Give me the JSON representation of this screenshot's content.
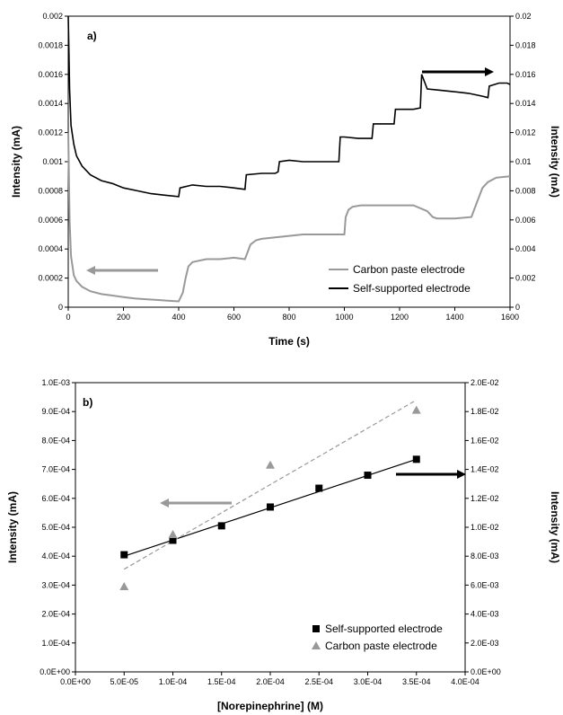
{
  "chart_data": [
    {
      "panel_label": "a)",
      "type": "line",
      "xlabel": "Time (s)",
      "ylabel_left": "Intensity (mA)",
      "ylabel_right": "Intensity (mA)",
      "xlim": [
        0,
        1600
      ],
      "ylim_left": [
        0,
        0.002
      ],
      "ylim_right": [
        0,
        0.02
      ],
      "x_ticks": [
        "0",
        "200",
        "400",
        "600",
        "800",
        "1000",
        "1200",
        "1400",
        "1600"
      ],
      "y_left_ticks": [
        "0",
        "0.0002",
        "0.0004",
        "0.0006",
        "0.0008",
        "0.001",
        "0.0012",
        "0.0014",
        "0.0016",
        "0.0018",
        "0.002"
      ],
      "y_right_ticks": [
        "0",
        "0.002",
        "0.004",
        "0.006",
        "0.008",
        "0.01",
        "0.012",
        "0.014",
        "0.016",
        "0.018",
        "0.02"
      ],
      "grid": false,
      "legend_position": "bottom-right",
      "series": [
        {
          "name": "Carbon paste electrode",
          "axis": "left",
          "color": "#999999",
          "x": [
            0,
            5,
            10,
            20,
            30,
            50,
            80,
            120,
            160,
            200,
            240,
            280,
            320,
            360,
            400,
            415,
            425,
            435,
            450,
            500,
            550,
            600,
            640,
            650,
            660,
            680,
            700,
            750,
            800,
            850,
            900,
            950,
            1000,
            1005,
            1015,
            1030,
            1060,
            1100,
            1150,
            1200,
            1250,
            1300,
            1320,
            1335,
            1345,
            1400,
            1460,
            1480,
            1500,
            1520,
            1550,
            1600
          ],
          "y": [
            0.0012,
            0.0006,
            0.00035,
            0.00022,
            0.00018,
            0.00014,
            0.00011,
            9e-05,
            8e-05,
            7e-05,
            6e-05,
            5.5e-05,
            5e-05,
            4.5e-05,
            4e-05,
            0.0001,
            0.0002,
            0.00028,
            0.00031,
            0.00033,
            0.00033,
            0.00034,
            0.00033,
            0.00038,
            0.00043,
            0.00046,
            0.00047,
            0.00048,
            0.00049,
            0.0005,
            0.0005,
            0.0005,
            0.0005,
            0.00062,
            0.00067,
            0.00069,
            0.0007,
            0.0007,
            0.0007,
            0.0007,
            0.0007,
            0.00066,
            0.00062,
            0.00061,
            0.00061,
            0.00061,
            0.00062,
            0.00072,
            0.00082,
            0.00086,
            0.00089,
            0.0009
          ]
        },
        {
          "name": "Self-supported electrode",
          "axis": "right",
          "color": "#000000",
          "x": [
            0,
            5,
            10,
            20,
            30,
            50,
            80,
            120,
            160,
            200,
            250,
            300,
            350,
            400,
            405,
            450,
            500,
            550,
            600,
            640,
            645,
            700,
            750,
            760,
            765,
            800,
            850,
            900,
            950,
            980,
            985,
            1000,
            1050,
            1100,
            1105,
            1150,
            1180,
            1185,
            1250,
            1275,
            1280,
            1300,
            1350,
            1400,
            1450,
            1500,
            1520,
            1525,
            1560,
            1590,
            1600
          ],
          "y": [
            0.02,
            0.015,
            0.0125,
            0.0112,
            0.0104,
            0.0097,
            0.0091,
            0.0087,
            0.0085,
            0.0082,
            0.008,
            0.0078,
            0.0077,
            0.0076,
            0.0082,
            0.0084,
            0.0083,
            0.0083,
            0.0082,
            0.0081,
            0.0091,
            0.0092,
            0.0092,
            0.0093,
            0.01,
            0.0101,
            0.01,
            0.01,
            0.01,
            0.01,
            0.0117,
            0.0117,
            0.0116,
            0.0116,
            0.0126,
            0.0126,
            0.0126,
            0.0136,
            0.0136,
            0.0137,
            0.016,
            0.015,
            0.0149,
            0.0148,
            0.0147,
            0.0145,
            0.0144,
            0.0152,
            0.0154,
            0.0154,
            0.0153
          ]
        }
      ],
      "annotations": [
        {
          "type": "arrow",
          "direction": "left",
          "color": "#999999",
          "points_to_axis": "left"
        },
        {
          "type": "arrow",
          "direction": "right",
          "color": "#000000",
          "points_to_axis": "right"
        }
      ]
    },
    {
      "panel_label": "b)",
      "type": "scatter",
      "xlabel": "[Norepinephrine] (M)",
      "ylabel_left": "Intensity (mA)",
      "ylabel_right": "Intensity (mA)",
      "xlim": [
        0,
        0.0004
      ],
      "ylim_left": [
        0,
        0.001
      ],
      "ylim_right": [
        0,
        0.02
      ],
      "x_ticks": [
        "0.0E+00",
        "5.0E-05",
        "1.0E-04",
        "1.5E-04",
        "2.0E-04",
        "2.5E-04",
        "3.0E-04",
        "3.5E-04",
        "4.0E-04"
      ],
      "y_left_ticks": [
        "0.0E+00",
        "1.0E-04",
        "2.0E-04",
        "3.0E-04",
        "4.0E-04",
        "5.0E-04",
        "6.0E-04",
        "7.0E-04",
        "8.0E-04",
        "9.0E-04",
        "1.0E-03"
      ],
      "y_right_ticks": [
        "0.0E+00",
        "2.0E-03",
        "4.0E-03",
        "6.0E-03",
        "8.0E-03",
        "1.0E-02",
        "1.2E-02",
        "1.4E-02",
        "1.6E-02",
        "1.8E-02",
        "2.0E-02"
      ],
      "grid": false,
      "legend_position": "bottom-right",
      "series": [
        {
          "name": "Self-supported electrode",
          "axis": "left",
          "marker": "square",
          "color": "#000000",
          "x": [
            5e-05,
            0.0001,
            0.00015,
            0.0002,
            0.00025,
            0.0003,
            0.00035
          ],
          "y": [
            0.000405,
            0.000455,
            0.000505,
            0.00057,
            0.000635,
            0.00068,
            0.000735
          ],
          "fit": {
            "x": [
              5e-05,
              0.00035
            ],
            "y": [
              0.0004,
              0.000735
            ],
            "style": "solid"
          }
        },
        {
          "name": "Carbon paste electrode",
          "axis": "right",
          "marker": "triangle",
          "color": "#999999",
          "x": [
            5e-05,
            0.0001,
            0.0002,
            0.00035
          ],
          "y": [
            0.0059,
            0.0095,
            0.0143,
            0.0181
          ],
          "fit": {
            "x": [
              5e-05,
              0.00035
            ],
            "y": [
              0.0071,
              0.0188
            ],
            "style": "dashed"
          }
        }
      ],
      "annotations": [
        {
          "type": "arrow",
          "direction": "left",
          "color": "#999999",
          "points_to_axis": "left"
        },
        {
          "type": "arrow",
          "direction": "right",
          "color": "#000000",
          "points_to_axis": "right"
        }
      ]
    }
  ]
}
